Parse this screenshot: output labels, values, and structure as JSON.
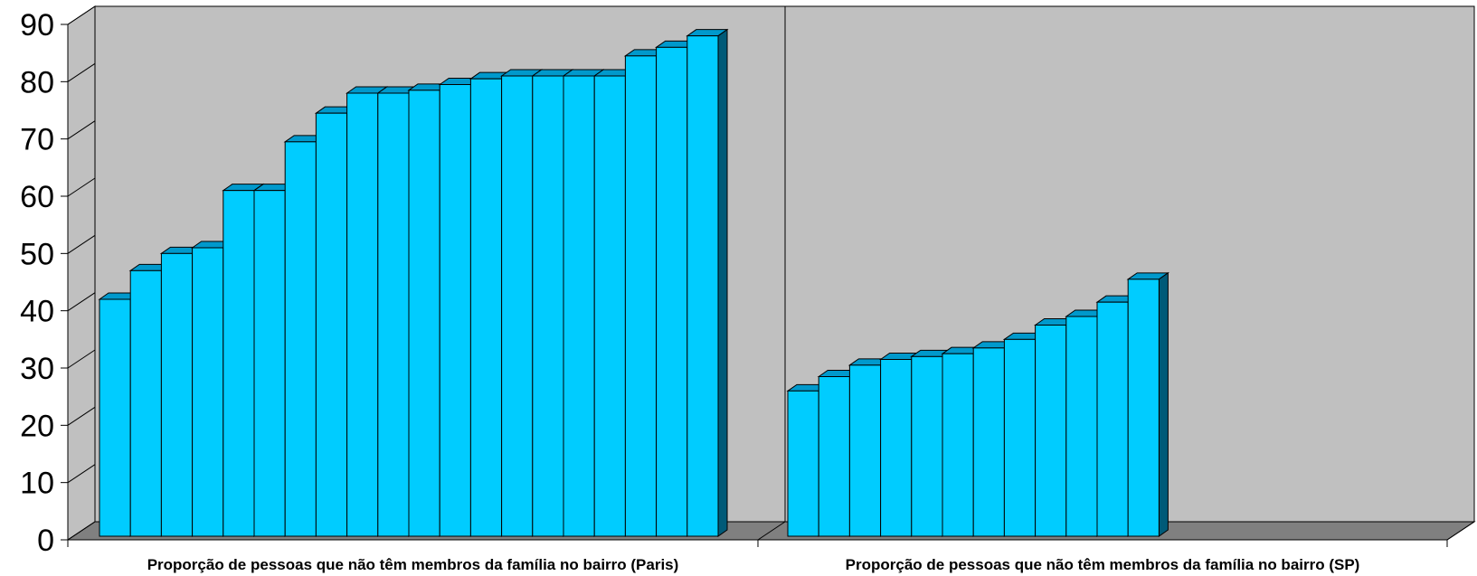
{
  "chart_data": {
    "type": "bar",
    "title": "",
    "xlabel": "",
    "ylabel": "",
    "ylim": [
      0,
      90
    ],
    "yticks": [
      0,
      10,
      20,
      30,
      40,
      50,
      60,
      70,
      80,
      90
    ],
    "categories": [
      "Proporção de pessoas que não têm membros da família no bairro (Paris)",
      "Proporção de pessoas que não têm membros da família no bairro (SP)"
    ],
    "groups": [
      {
        "category_index": 0,
        "values": [
          42,
          47,
          50,
          51,
          61,
          61,
          69.5,
          74.5,
          78,
          78,
          78.5,
          79.5,
          80.5,
          81,
          81,
          81,
          81,
          84.5,
          86,
          88
        ]
      },
      {
        "category_index": 1,
        "values": [
          26,
          28.5,
          30.5,
          31.5,
          32,
          32.5,
          33.5,
          35,
          37.5,
          39,
          41.5,
          45.5
        ]
      }
    ],
    "grid": false,
    "legend": "none",
    "colors": {
      "bar_front": "#00CCFF",
      "bar_top": "#0099CC",
      "bar_side": "#005A78",
      "wall": "#C0C0C0",
      "floor": "#808080",
      "outline": "#000000"
    }
  }
}
